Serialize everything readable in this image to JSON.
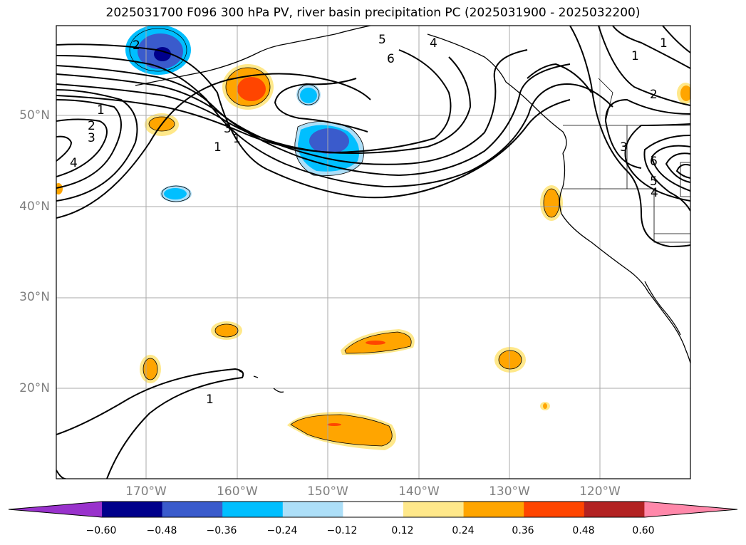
{
  "title": "2025031700 F096 300 hPa PV, river basin precipitation PC (2025031900 - 2025032200)",
  "lat_labels": [
    "50°N",
    "40°N",
    "30°N",
    "20°N"
  ],
  "lon_labels": [
    "170°W",
    "160°W",
    "150°W",
    "140°W",
    "130°W",
    "120°W"
  ],
  "colorbar": {
    "tick_labels": [
      "−0.60",
      "−0.48",
      "−0.36",
      "−0.24",
      "−0.12",
      "0.12",
      "0.24",
      "0.36",
      "0.48",
      "0.60"
    ],
    "colors": [
      "#9932CC",
      "#00008B",
      "#3A5BCC",
      "#00BFFF",
      "#ADDFF8",
      "#FFFFFF",
      "#FFE88A",
      "#FFA500",
      "#FF4500",
      "#B22222",
      "#FF88AA"
    ]
  },
  "contour_labels": [
    "1",
    "2",
    "3",
    "4",
    "5",
    "6",
    "2",
    "3",
    "1",
    "1",
    "1",
    "2",
    "3",
    "4",
    "5",
    "6",
    "1",
    "4",
    "1",
    "2",
    "1",
    "3",
    "4",
    "5",
    "6",
    "2"
  ],
  "colors": {
    "neg_strong": "#00008B",
    "neg_med": "#3A5BCC",
    "neg_light": "#00BFFF",
    "neg_pale": "#ADDFF8",
    "pos_pale": "#FFE88A",
    "pos_med": "#FFA500",
    "pos_strong": "#FF4500",
    "grid": "#aaaaaa"
  }
}
